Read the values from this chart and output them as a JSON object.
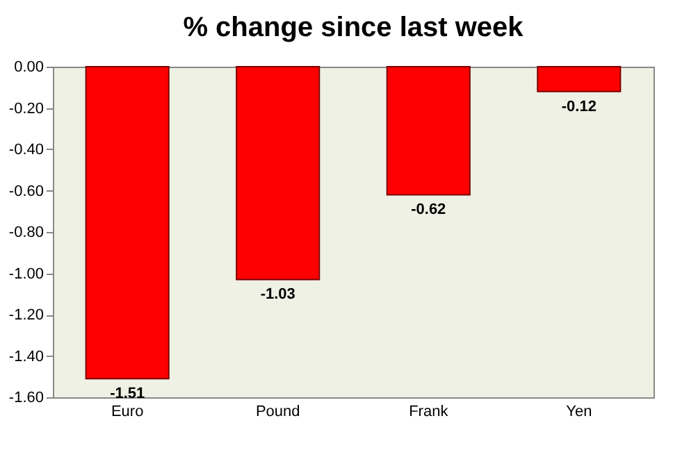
{
  "chart_data": {
    "type": "bar",
    "title": "% change since last week",
    "categories": [
      "Euro",
      "Pound",
      "Frank",
      "Yen"
    ],
    "values": [
      -1.51,
      -1.03,
      -0.62,
      -0.12
    ],
    "color": "#ff0000",
    "ylim": [
      -1.6,
      0
    ],
    "yticks": [
      {
        "value": 0,
        "label": "0.00"
      },
      {
        "value": -0.2,
        "label": "-0.20"
      },
      {
        "value": -0.4,
        "label": "-0.40"
      },
      {
        "value": -0.6,
        "label": "-0.60"
      },
      {
        "value": -0.8,
        "label": "-0.80"
      },
      {
        "value": -1.0,
        "label": "-1.00"
      },
      {
        "value": -1.2,
        "label": "-1.20"
      },
      {
        "value": -1.4,
        "label": "-1.40"
      },
      {
        "value": -1.6,
        "label": "-1.60"
      }
    ],
    "grid": false,
    "data_labels": true
  }
}
